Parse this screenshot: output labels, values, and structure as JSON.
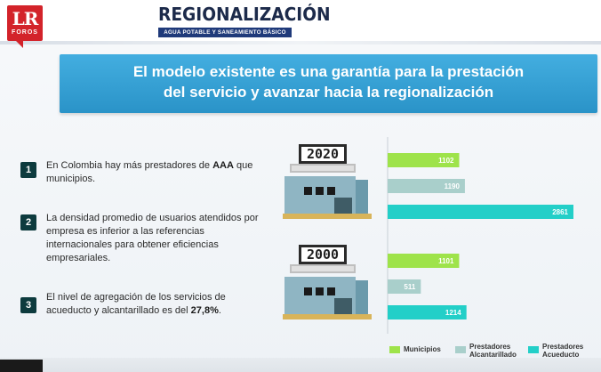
{
  "header": {
    "logo_main": "LR",
    "logo_sub": "FOROS",
    "title": "REGIONALIZACIÓN",
    "subtitle": "AGUA POTABLE Y SANEAMIENTO BÁSICO"
  },
  "banner": {
    "line1": "El modelo existente es una garantía  para la prestación",
    "line2": "del servicio y avanzar hacia la regionalización"
  },
  "points": [
    {
      "number": "1",
      "text_pre": "En Colombia hay más prestadores de ",
      "bold": "AAA",
      "text_post": " que municipios."
    },
    {
      "number": "2",
      "text_pre": "La densidad promedio de usuarios atendidos por empresa es inferior a las referencias internacionales para obtener eficiencias empresariales.",
      "bold": "",
      "text_post": ""
    },
    {
      "number": "3",
      "text_pre": "El nivel de agregación de los servicios de acueducto y alcantarillado es del ",
      "bold": "27,8%",
      "text_post": "."
    }
  ],
  "years": [
    "2020",
    "2000"
  ],
  "colors": {
    "municipios": "#9ee34a",
    "alcantarillado": "#a9cfcb",
    "acueducto": "#23cfc8",
    "banner": "#2f9bd0",
    "number_box": "#0d3b3e"
  },
  "chart_data": {
    "type": "bar",
    "orientation": "horizontal",
    "groups": [
      "2020",
      "2000"
    ],
    "series": [
      {
        "name": "Municipios",
        "values": [
          1102,
          1101
        ]
      },
      {
        "name": "Prestadores Alcantarillado",
        "values": [
          1190,
          511
        ]
      },
      {
        "name": "Prestadores Acueducto",
        "values": [
          2861,
          1214
        ]
      }
    ],
    "value_labels": [
      [
        "1102",
        "1190",
        "2861"
      ],
      [
        "1101",
        "511",
        "1214"
      ]
    ],
    "legend": [
      "Municipios",
      "Prestadores Alcantarillado",
      "Prestadores Acueducto"
    ],
    "legend_lines": [
      [
        "Municipios"
      ],
      [
        "Prestadores",
        "Alcantarillado"
      ],
      [
        "Prestadores",
        "Acueducto"
      ]
    ],
    "legend_position": "bottom",
    "grid": false
  }
}
